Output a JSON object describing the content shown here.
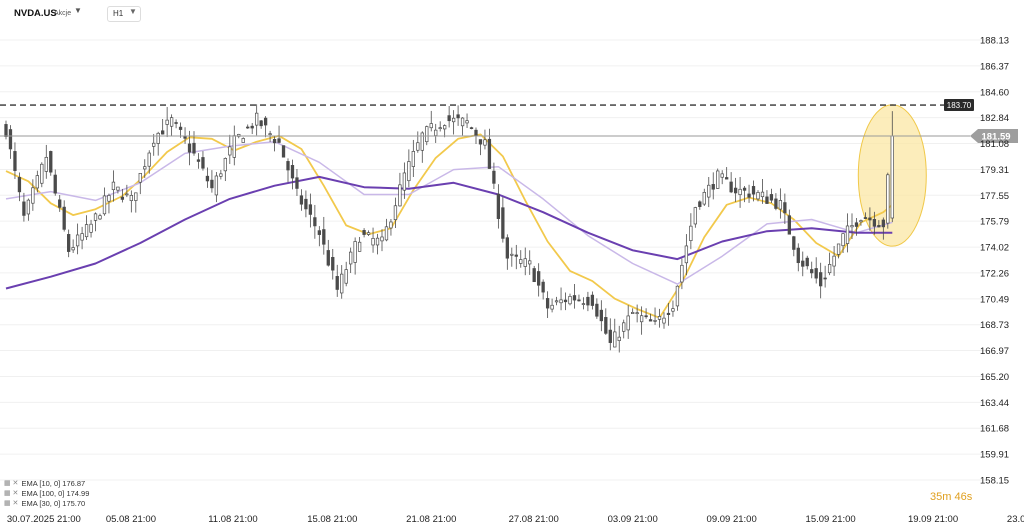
{
  "header": {
    "symbol": "NVDA.US",
    "symbol_type": "Akcje",
    "timeframe": "H1"
  },
  "price_labels": {
    "resistance": "183.70",
    "current": "181.59"
  },
  "timer": "35m 46s",
  "legend": [
    {
      "label": "EMA [10, 0] 176.87"
    },
    {
      "label": "EMA [100, 0] 174.99"
    },
    {
      "label": "EMA [30, 0] 175.70"
    }
  ],
  "colors": {
    "up_candle": "#4b4b4b",
    "down_candle": "#4b4b4b",
    "ema10": "#f2c94c",
    "ema30": "#c9b8e8",
    "ema100": "#6a3fb0",
    "highlight_fill": "#fbe7a4",
    "highlight_stroke": "#f0c848"
  },
  "chart_data": {
    "type": "candlestick",
    "instrument": "NVDA.US",
    "timeframe": "H1",
    "ylim": [
      158.15,
      189.2
    ],
    "y_ticks": [
      "188.13",
      "186.37",
      "184.60",
      "182.84",
      "181.08",
      "179.31",
      "177.55",
      "175.79",
      "174.02",
      "172.26",
      "170.49",
      "168.73",
      "166.97",
      "165.20",
      "163.44",
      "161.68",
      "159.91",
      "158.15"
    ],
    "x_ticks": [
      "30.07.2025  21:00",
      "05.08  21:00",
      "11.08  21:00",
      "15.08  21:00",
      "21.08  21:00",
      "27.08  21:00",
      "03.09  21:00",
      "09.09  21:00",
      "15.09  21:00",
      "19.09  21:00",
      "23.09  18:00"
    ],
    "horizontal_lines": [
      {
        "value": 183.7,
        "style": "dashed"
      },
      {
        "value": 181.59,
        "style": "solid"
      }
    ],
    "series_path": [
      [
        0,
        182.0
      ],
      [
        4,
        176.0
      ],
      [
        9,
        180.2
      ],
      [
        14,
        173.8
      ],
      [
        19,
        175.5
      ],
      [
        24,
        178.1
      ],
      [
        28,
        177.2
      ],
      [
        33,
        181.5
      ],
      [
        37,
        182.6
      ],
      [
        42,
        180.3
      ],
      [
        46,
        178.0
      ],
      [
        51,
        181.2
      ],
      [
        56,
        182.7
      ],
      [
        61,
        181.1
      ],
      [
        65,
        177.6
      ],
      [
        70,
        175.0
      ],
      [
        74,
        171.1
      ],
      [
        79,
        174.8
      ],
      [
        84,
        174.3
      ],
      [
        89,
        178.9
      ],
      [
        93,
        181.6
      ],
      [
        98,
        182.7
      ],
      [
        103,
        182.5
      ],
      [
        107,
        181.0
      ],
      [
        112,
        173.3
      ],
      [
        117,
        172.8
      ],
      [
        121,
        169.9
      ],
      [
        126,
        170.6
      ],
      [
        131,
        170.4
      ],
      [
        135,
        167.4
      ],
      [
        140,
        169.5
      ],
      [
        145,
        168.7
      ],
      [
        149,
        170.2
      ],
      [
        154,
        176.8
      ],
      [
        159,
        178.8
      ],
      [
        163,
        177.9
      ],
      [
        168,
        177.6
      ],
      [
        173,
        176.9
      ],
      [
        177,
        173.3
      ],
      [
        182,
        171.5
      ],
      [
        187,
        174.7
      ],
      [
        191,
        176.2
      ],
      [
        196,
        175.6
      ],
      [
        198,
        181.6
      ]
    ],
    "series": [
      {
        "name": "EMA [10, 0]",
        "last": 176.87,
        "values": [
          [
            0,
            179.2
          ],
          [
            5,
            178.5
          ],
          [
            10,
            177.0
          ],
          [
            15,
            176.2
          ],
          [
            20,
            176.6
          ],
          [
            26,
            177.5
          ],
          [
            31,
            178.9
          ],
          [
            36,
            180.5
          ],
          [
            41,
            181.5
          ],
          [
            46,
            181.4
          ],
          [
            51,
            180.6
          ],
          [
            56,
            181.2
          ],
          [
            61,
            181.6
          ],
          [
            66,
            180.7
          ],
          [
            71,
            178.2
          ],
          [
            76,
            175.5
          ],
          [
            81,
            174.9
          ],
          [
            86,
            175.3
          ],
          [
            91,
            177.9
          ],
          [
            96,
            180.1
          ],
          [
            101,
            181.4
          ],
          [
            106,
            181.7
          ],
          [
            111,
            180.2
          ],
          [
            116,
            177.2
          ],
          [
            121,
            174.4
          ],
          [
            126,
            172.4
          ],
          [
            131,
            171.7
          ],
          [
            136,
            170.5
          ],
          [
            141,
            169.8
          ],
          [
            146,
            169.2
          ],
          [
            151,
            171.6
          ],
          [
            156,
            174.7
          ],
          [
            161,
            176.9
          ],
          [
            166,
            177.4
          ],
          [
            171,
            177.0
          ],
          [
            176,
            175.9
          ],
          [
            181,
            174.3
          ],
          [
            186,
            173.4
          ],
          [
            191,
            175.7
          ],
          [
            196,
            176.4
          ],
          [
            198,
            176.9
          ]
        ]
      },
      {
        "name": "EMA [30, 0]",
        "last": 175.7,
        "values": [
          [
            0,
            177.3
          ],
          [
            10,
            177.8
          ],
          [
            20,
            177.2
          ],
          [
            30,
            178.4
          ],
          [
            40,
            180.4
          ],
          [
            50,
            180.9
          ],
          [
            60,
            181.2
          ],
          [
            70,
            179.8
          ],
          [
            80,
            177.6
          ],
          [
            90,
            177.6
          ],
          [
            100,
            179.3
          ],
          [
            110,
            179.5
          ],
          [
            120,
            177.3
          ],
          [
            130,
            174.8
          ],
          [
            140,
            172.9
          ],
          [
            150,
            171.5
          ],
          [
            160,
            173.4
          ],
          [
            170,
            175.6
          ],
          [
            180,
            175.9
          ],
          [
            190,
            175.0
          ],
          [
            198,
            175.7
          ]
        ]
      },
      {
        "name": "EMA [100, 0]",
        "last": 174.99,
        "values": [
          [
            0,
            171.2
          ],
          [
            10,
            172.0
          ],
          [
            20,
            172.9
          ],
          [
            30,
            174.3
          ],
          [
            40,
            175.9
          ],
          [
            50,
            177.3
          ],
          [
            60,
            178.2
          ],
          [
            70,
            178.8
          ],
          [
            80,
            178.1
          ],
          [
            90,
            178.0
          ],
          [
            100,
            178.4
          ],
          [
            110,
            177.6
          ],
          [
            120,
            176.4
          ],
          [
            130,
            175.0
          ],
          [
            140,
            173.8
          ],
          [
            150,
            173.2
          ],
          [
            160,
            174.4
          ],
          [
            170,
            175.1
          ],
          [
            180,
            175.3
          ],
          [
            190,
            175.0
          ],
          [
            198,
            175.0
          ]
        ]
      }
    ]
  }
}
